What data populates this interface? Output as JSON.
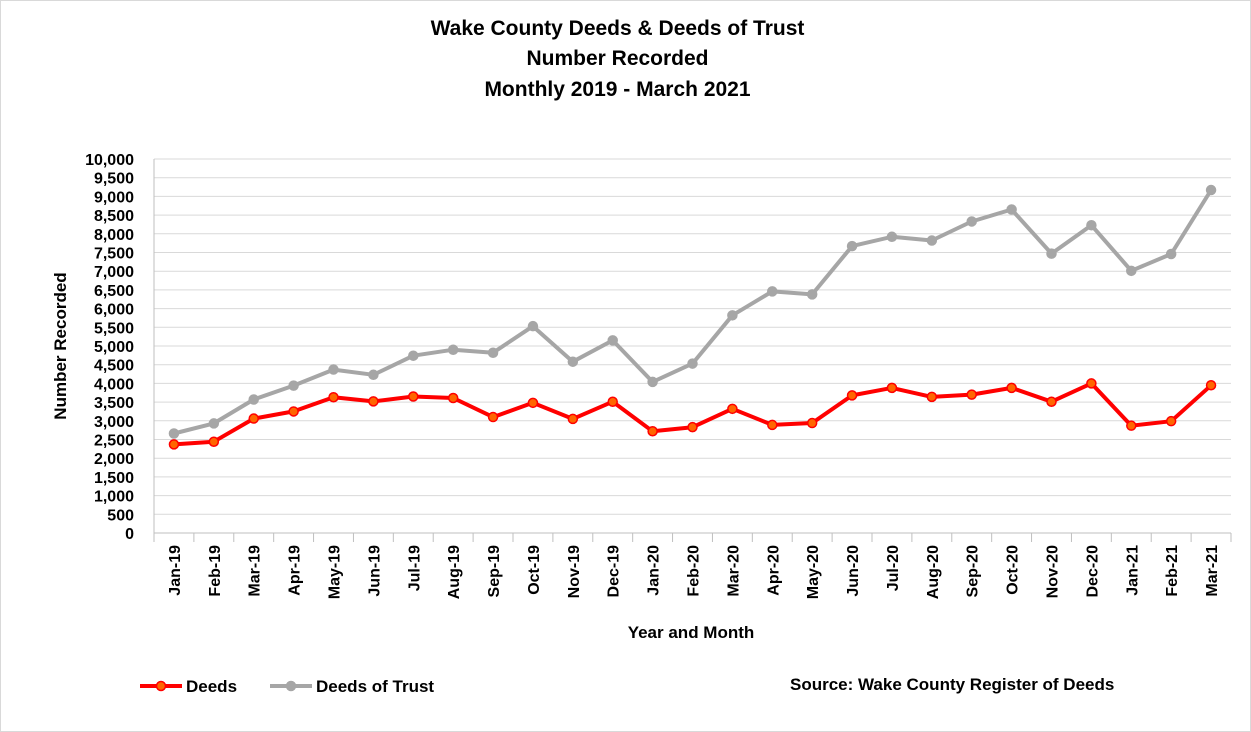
{
  "chart_data": {
    "type": "line",
    "title": [
      "Wake County Deeds & Deeds of Trust",
      "Number Recorded",
      "Monthly 2019 - March 2021"
    ],
    "xlabel": "Year and Month",
    "ylabel": "Number Recorded",
    "ylim": [
      0,
      10000
    ],
    "ytick_step": 500,
    "ytick_labels": [
      "0",
      "500",
      "1,000",
      "1,500",
      "2,000",
      "2,500",
      "3,000",
      "3,500",
      "4,000",
      "4,500",
      "5,000",
      "5,500",
      "6,000",
      "6,500",
      "7,000",
      "7,500",
      "8,000",
      "8,500",
      "9,000",
      "9,500",
      "10,000"
    ],
    "grid": true,
    "legend_position": "bottom-left",
    "categories": [
      "Jan-19",
      "Feb-19",
      "Mar-19",
      "Apr-19",
      "May-19",
      "Jun-19",
      "Jul-19",
      "Aug-19",
      "Sep-19",
      "Oct-19",
      "Nov-19",
      "Dec-19",
      "Jan-20",
      "Feb-20",
      "Mar-20",
      "Apr-20",
      "May-20",
      "Jun-20",
      "Jul-20",
      "Aug-20",
      "Sep-20",
      "Oct-20",
      "Nov-20",
      "Dec-20",
      "Jan-21",
      "Feb-21",
      "Mar-21"
    ],
    "series": [
      {
        "name": "Deeds",
        "color": "#ff0000",
        "marker_color": "#ff6600",
        "values": [
          2370,
          2440,
          3060,
          3250,
          3630,
          3520,
          3650,
          3610,
          3100,
          3480,
          3050,
          3510,
          2720,
          2830,
          3320,
          2890,
          2940,
          3680,
          3880,
          3640,
          3700,
          3880,
          3510,
          4000,
          2870,
          2990,
          3950
        ]
      },
      {
        "name": "Deeds of Trust",
        "color": "#a6a6a6",
        "marker_color": "#a6a6a6",
        "values": [
          2660,
          2930,
          3570,
          3940,
          4370,
          4230,
          4740,
          4900,
          4820,
          5530,
          4580,
          5150,
          4040,
          4530,
          5820,
          6460,
          6380,
          7670,
          7920,
          7820,
          8330,
          8650,
          7470,
          8230,
          7010,
          7460,
          9170
        ]
      }
    ],
    "source_text": "Source: Wake County Register of Deeds"
  }
}
